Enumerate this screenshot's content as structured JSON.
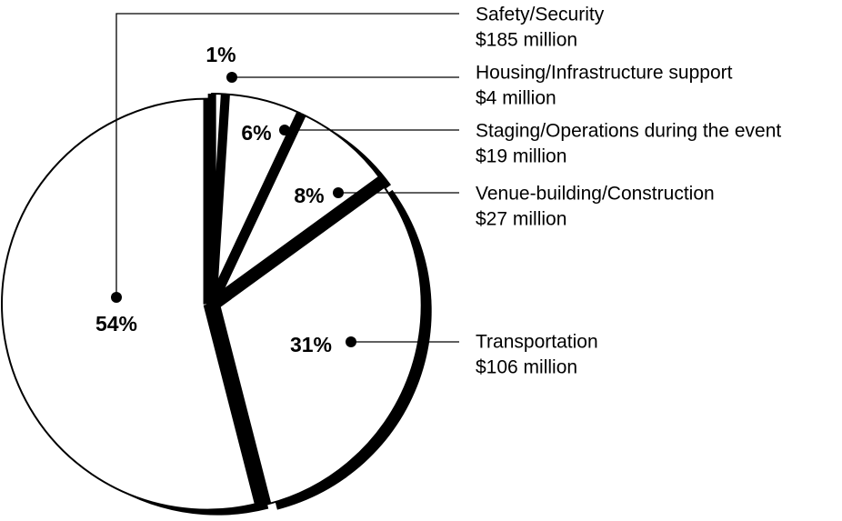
{
  "chart_data": {
    "type": "pie",
    "categories": [
      "Safety/Security",
      "Housing/Infrastructure support",
      "Staging/Operations during the event",
      "Venue-building/Construction",
      "Transportation"
    ],
    "amounts": [
      "$185 million",
      "$4 million",
      "$19 million",
      "$27 million",
      "$106 million"
    ],
    "values": [
      54,
      1,
      6,
      8,
      31
    ],
    "value_labels": [
      "54%",
      "1%",
      "6%",
      "8%",
      "31%"
    ],
    "color": "#ffffff"
  }
}
